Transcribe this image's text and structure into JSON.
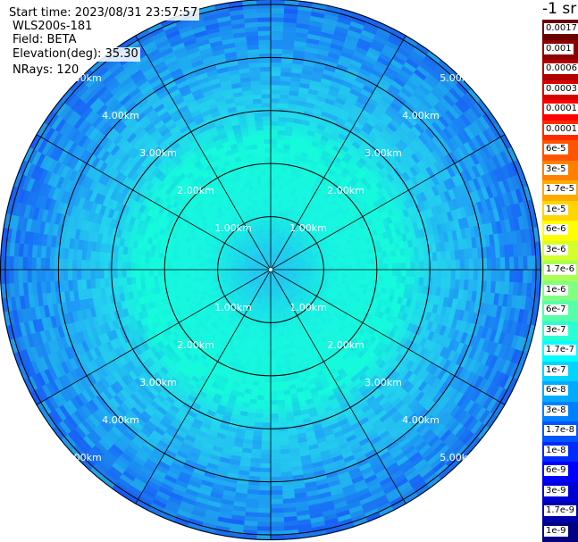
{
  "header": {
    "start_time": "Start time: 2023/08/31 23:57:57",
    "device": "WLS200s-181",
    "field": "Field: BETA",
    "elevation": "Elevation(deg): 35.30",
    "nrays": "NRays: 120"
  },
  "colorbar": {
    "unit": "-1 sr",
    "labels": [
      "0.0017",
      "0.001",
      "0.0006",
      "0.0003",
      "0.00017",
      "0.0001",
      "6e-5",
      "3e-5",
      "1.7e-5",
      "1e-5",
      "6e-6",
      "3e-6",
      "1.7e-6",
      "1e-6",
      "6e-7",
      "3e-7",
      "1.7e-7",
      "1e-7",
      "6e-8",
      "3e-8",
      "1.7e-8",
      "1e-8",
      "6e-9",
      "3e-9",
      "1.7e-9",
      "1e-9"
    ],
    "colors": [
      "#6a0000",
      "#8f0000",
      "#b00000",
      "#d80000",
      "#ff0000",
      "#ff2a00",
      "#ff5500",
      "#ff8000",
      "#ffaa00",
      "#ffd400",
      "#ffff00",
      "#d4ff2a",
      "#aaff55",
      "#80ff80",
      "#55ffaa",
      "#2affd4",
      "#00ffff",
      "#00d4ff",
      "#00aaff",
      "#0080ff",
      "#0055ff",
      "#002aff",
      "#0000ff",
      "#0000d4",
      "#0000aa",
      "#000080"
    ]
  },
  "chart_data": {
    "type": "heatmap",
    "projection": "polar",
    "rings": [
      {
        "range_km": 1,
        "label": "1.00km"
      },
      {
        "range_km": 2,
        "label": "2.00km"
      },
      {
        "range_km": 3,
        "label": "3.00km"
      },
      {
        "range_km": 4,
        "label": "4.00km"
      },
      {
        "range_km": 5,
        "label": "5.00km"
      }
    ],
    "max_range_km": 5.1,
    "spokes_deg": [
      0,
      30,
      60,
      90,
      120,
      150,
      180,
      210,
      240,
      270,
      300,
      330
    ],
    "range_profile": [
      {
        "range_km": 0.3,
        "color": "#1ecaf0"
      },
      {
        "range_km": 1.2,
        "color": "#16f6e0"
      },
      {
        "range_km": 2.5,
        "color": "#14fadb"
      },
      {
        "range_km": 3.0,
        "color": "#22d4ee"
      },
      {
        "range_km": 3.8,
        "color": "#22b6f2"
      },
      {
        "range_km": 4.5,
        "color": "#1a90f2"
      },
      {
        "range_km": 5.1,
        "color": "#1a70ec"
      }
    ]
  }
}
